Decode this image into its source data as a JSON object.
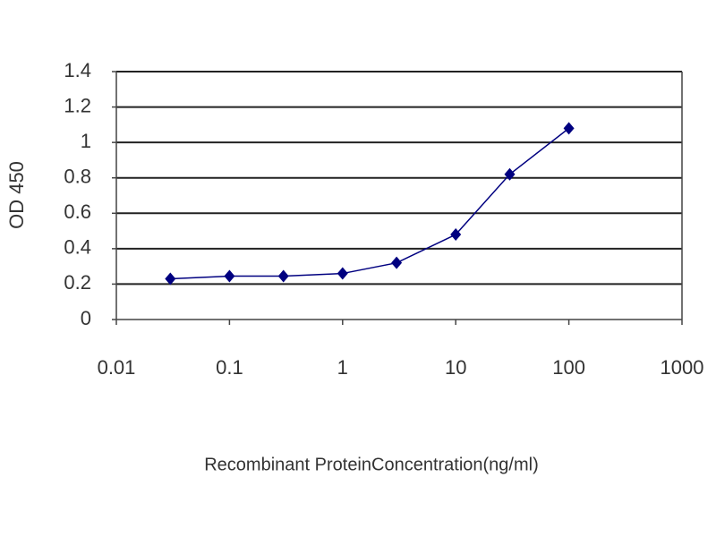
{
  "chart_data": {
    "type": "line",
    "x_label": "Recombinant ProteinConcentration(ng/ml)",
    "y_label": "OD 450",
    "x": [
      0.03,
      0.1,
      0.3,
      1,
      3,
      10,
      30,
      100
    ],
    "values": [
      0.23,
      0.245,
      0.245,
      0.26,
      0.32,
      0.48,
      0.82,
      1.08
    ],
    "color": "#000080",
    "xscale": "log",
    "xlim": [
      0.01,
      1000
    ],
    "xticks": [
      0.01,
      0.1,
      1,
      10,
      100,
      1000
    ],
    "ylim": [
      0,
      1.4
    ],
    "yticks": [
      0,
      0.2,
      0.4,
      0.6,
      0.8,
      1,
      1.2,
      1.4
    ],
    "grid": true
  }
}
